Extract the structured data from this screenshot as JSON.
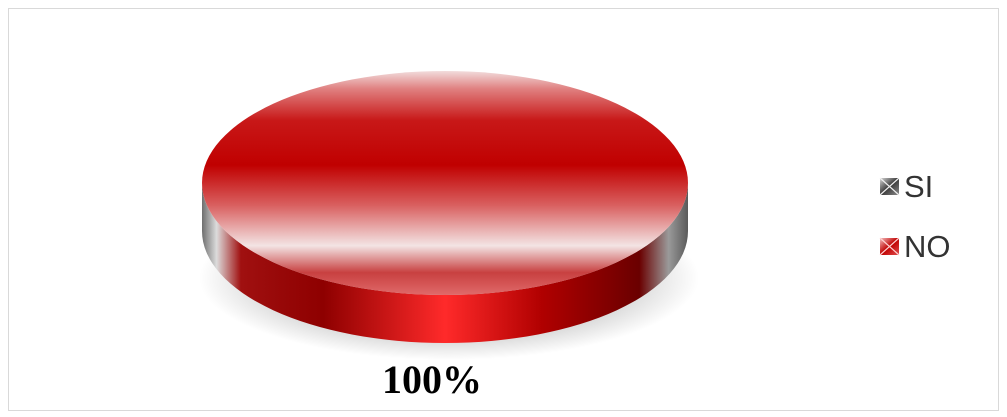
{
  "chart_data": {
    "type": "pie",
    "style": "3d",
    "categories": [
      "SI",
      "NO"
    ],
    "values": [
      0,
      100
    ],
    "data_labels": [
      "100%"
    ],
    "colors": [
      "#5a5a5a",
      "#c00000"
    ],
    "legend": "right"
  }
}
